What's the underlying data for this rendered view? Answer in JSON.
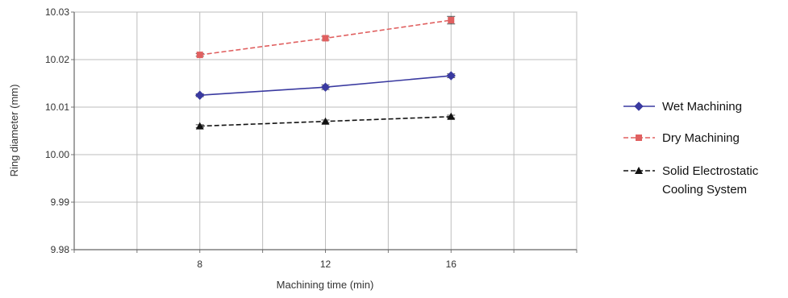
{
  "chart_data": {
    "type": "line",
    "xlabel": "Machining time (min)",
    "ylabel": "Ring diameter (mm)",
    "x": [
      8,
      12,
      16
    ],
    "xlim": [
      4,
      20
    ],
    "ylim": [
      9.98,
      10.03
    ],
    "yticks": [
      9.98,
      9.99,
      10.0,
      10.01,
      10.02,
      10.03
    ],
    "ytick_labels": [
      "9.98",
      "9.99",
      "10.00",
      "10.01",
      "10.02",
      "10.03"
    ],
    "xtick_labels": [
      "8",
      "12",
      "16"
    ],
    "grid": true,
    "legend_position": "right",
    "series": [
      {
        "name": "Wet Machining",
        "values": [
          10.0125,
          10.0142,
          10.0166
        ],
        "errors": [
          0.0003,
          0.0005,
          0.0004
        ],
        "color": "#3a3aa0",
        "marker": "diamond",
        "dash": "solid"
      },
      {
        "name": "Dry Machining",
        "values": [
          10.021,
          10.0245,
          10.0283
        ],
        "errors": [
          0.0003,
          0.0004,
          0.0008
        ],
        "color": "#e06060",
        "marker": "square",
        "dash": "dashed"
      },
      {
        "name": "Solid Electrostatic Cooling System",
        "values": [
          10.006,
          10.007,
          10.008
        ],
        "errors": [
          0.0003,
          0.0003,
          0.0003
        ],
        "color": "#111111",
        "marker": "triangle",
        "dash": "dashed"
      }
    ],
    "legend": [
      {
        "lines": [
          "Wet Machining"
        ]
      },
      {
        "lines": [
          "Dry Machining"
        ]
      },
      {
        "lines": [
          "Solid Electrostatic",
          "Cooling System"
        ]
      }
    ]
  }
}
